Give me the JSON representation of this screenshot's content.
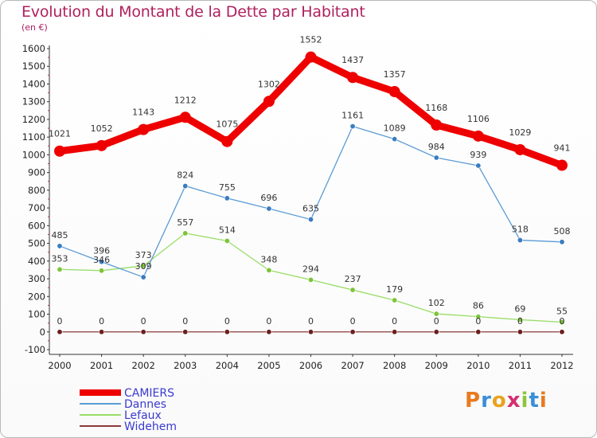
{
  "title": "Evolution du Montant de la Dette par Habitant",
  "unit": "(en €)",
  "logo": "Proxiti",
  "chart_data": {
    "type": "line",
    "title": "Evolution du Montant de la Dette par Habitant",
    "ylabel": "(en €)",
    "x": [
      2000,
      2001,
      2002,
      2003,
      2004,
      2005,
      2006,
      2007,
      2008,
      2009,
      2010,
      2011,
      2012
    ],
    "x_tick_labels": [
      "2000",
      "2001",
      "2002",
      "2003",
      "2004",
      "2005",
      "2006",
      "2007",
      "2008",
      "2009",
      "2010",
      "2011",
      "2012"
    ],
    "ylim": [
      -100,
      1600
    ],
    "y_ticks": [
      -100,
      0,
      100,
      200,
      300,
      400,
      500,
      600,
      700,
      800,
      900,
      1000,
      1100,
      1200,
      1300,
      1400,
      1500,
      1600
    ],
    "grid": false,
    "legend_position": "bottom-left",
    "series": [
      {
        "name": "CAMIERS",
        "color": "#ee0000",
        "values": [
          1021,
          1052,
          1143,
          1212,
          1075,
          1302,
          1552,
          1437,
          1357,
          1168,
          1106,
          1029,
          941
        ]
      },
      {
        "name": "Dannes",
        "color": "#5b9bd5",
        "values": [
          485,
          396,
          309,
          824,
          755,
          696,
          635,
          1161,
          1089,
          984,
          939,
          518,
          508
        ]
      },
      {
        "name": "Lefaux",
        "color": "#99dd66",
        "values": [
          353,
          346,
          373,
          557,
          514,
          348,
          294,
          237,
          179,
          102,
          86,
          69,
          55
        ]
      },
      {
        "name": "Widehem",
        "color": "#8b3a3a",
        "values": [
          0,
          0,
          0,
          0,
          0,
          0,
          0,
          0,
          0,
          0,
          0,
          0,
          0
        ]
      }
    ]
  }
}
